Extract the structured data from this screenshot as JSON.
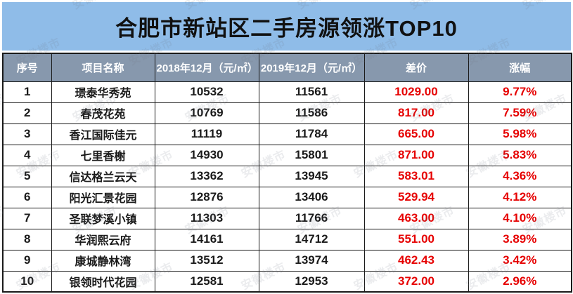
{
  "title": "合肥市新站区二手房源领涨TOP10",
  "watermark": {
    "text": "安徽楼市"
  },
  "colors": {
    "title_bar_bg": "#8fbce8",
    "header_bg": "#8798ad",
    "header_text": "#ffffff",
    "body_text": "#1a1a1a",
    "highlight_red": "#e60000",
    "border": "#1a1a1a"
  },
  "chart_data": {
    "type": "table",
    "title": "合肥市新站区二手房源领涨TOP10",
    "columns": [
      "序号",
      "项目名称",
      "2018年12月（元/㎡）",
      "2019年12月（元/㎡）",
      "差价",
      "涨幅"
    ],
    "rows": [
      [
        "1",
        "璟泰华秀苑",
        "10532",
        "11561",
        "1029.00",
        "9.77%"
      ],
      [
        "2",
        "春茂花苑",
        "10769",
        "11586",
        "817.00",
        "7.59%"
      ],
      [
        "3",
        "香江国际佳元",
        "11119",
        "11784",
        "665.00",
        "5.98%"
      ],
      [
        "4",
        "七里香榭",
        "14930",
        "15801",
        "871.00",
        "5.83%"
      ],
      [
        "5",
        "信达格兰云天",
        "13362",
        "13945",
        "583.01",
        "4.36%"
      ],
      [
        "6",
        "阳光汇景花园",
        "12876",
        "13406",
        "529.94",
        "4.12%"
      ],
      [
        "7",
        "圣联梦溪小镇",
        "11303",
        "11766",
        "463.00",
        "4.10%"
      ],
      [
        "8",
        "华润熙云府",
        "14161",
        "14712",
        "551.00",
        "3.89%"
      ],
      [
        "9",
        "康城静林湾",
        "13512",
        "13974",
        "462.43",
        "3.42%"
      ],
      [
        "10",
        "银领时代花园",
        "12581",
        "12953",
        "372.00",
        "2.96%"
      ]
    ]
  }
}
